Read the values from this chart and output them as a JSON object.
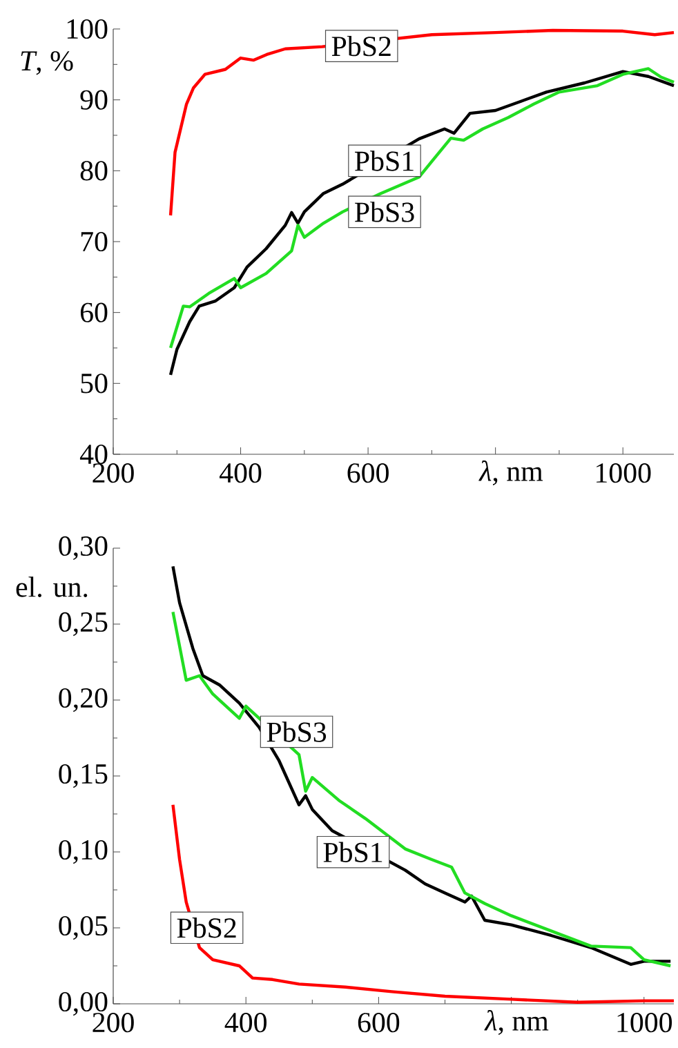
{
  "chart_data": [
    {
      "type": "line",
      "ylabel": "*T*, %",
      "xlabel": "*λ*, nm",
      "xlim": [
        200,
        1080
      ],
      "ylim": [
        40,
        100
      ],
      "xticks": [
        200,
        400,
        600,
        {
          "value": 800,
          "label": null
        },
        1000
      ],
      "yticks": [
        40,
        50,
        60,
        70,
        80,
        90,
        100
      ],
      "series": [
        {
          "name": "PbS1",
          "color": "#000000",
          "x": [
            290,
            300,
            320,
            335,
            360,
            390,
            410,
            440,
            470,
            480,
            490,
            500,
            530,
            560,
            600,
            680,
            720,
            735,
            760,
            800,
            840,
            880,
            940,
            1000,
            1040,
            1080
          ],
          "values": [
            51.2,
            54.8,
            58.7,
            60.9,
            61.6,
            63.5,
            66.4,
            69.0,
            72.3,
            74.1,
            72.6,
            74.2,
            76.8,
            78.1,
            null,
            84.5,
            85.9,
            85.3,
            88.1,
            88.5,
            89.8,
            91.1,
            92.4,
            94.0,
            93.3,
            92.0
          ]
        },
        {
          "name": "PbS2",
          "color": "#ff0000",
          "x": [
            290,
            297,
            315,
            326,
            344,
            376,
            400,
            420,
            441,
            470,
            528,
            600,
            700,
            800,
            890,
            1000,
            1050,
            1080
          ],
          "values": [
            73.7,
            82.6,
            89.4,
            91.7,
            93.6,
            94.3,
            95.9,
            95.6,
            96.4,
            97.2,
            97.5,
            null,
            99.2,
            99.5,
            99.8,
            99.7,
            99.2,
            99.5
          ]
        },
        {
          "name": "PbS3",
          "color": "#22dd22",
          "x": [
            290,
            310,
            320,
            350,
            390,
            400,
            440,
            480,
            490,
            500,
            530,
            560,
            620,
            680,
            700,
            730,
            750,
            780,
            820,
            860,
            900,
            960,
            1000,
            1040,
            1060,
            1080
          ],
          "values": [
            55.0,
            60.9,
            60.8,
            62.7,
            64.8,
            63.5,
            65.5,
            68.7,
            72.3,
            70.6,
            72.6,
            74.2,
            76.8,
            79.1,
            81.3,
            84.6,
            84.3,
            85.9,
            87.5,
            89.4,
            91.1,
            92.0,
            93.6,
            94.4,
            93.2,
            92.5
          ]
        }
      ]
    },
    {
      "type": "line",
      "ylabel": "el. un.",
      "xlabel": "*λ*, nm",
      "xlim": [
        200,
        1045
      ],
      "ylim": [
        0,
        0.3
      ],
      "xticks": [
        200,
        400,
        600,
        {
          "value": 800,
          "label": null
        },
        1000
      ],
      "yticks": [
        {
          "value": 0,
          "label": "0,00"
        },
        {
          "value": 0.05,
          "label": "0,05"
        },
        {
          "value": 0.1,
          "label": "0,10"
        },
        {
          "value": 0.15,
          "label": "0,15"
        },
        {
          "value": 0.2,
          "label": "0,20"
        },
        {
          "value": 0.25,
          "label": "0,25"
        },
        {
          "value": 0.3,
          "label": "0,30"
        }
      ],
      "series": [
        {
          "name": "PbS1",
          "color": "#000000",
          "x": [
            290,
            300,
            320,
            335,
            360,
            390,
            420,
            450,
            480,
            490,
            500,
            530,
            640,
            670,
            700,
            730,
            740,
            760,
            800,
            860,
            920,
            980,
            1000,
            1040
          ],
          "values": [
            0.288,
            0.264,
            0.234,
            0.216,
            0.21,
            0.198,
            0.182,
            0.16,
            0.131,
            0.137,
            0.128,
            0.114,
            0.088,
            0.079,
            0.073,
            0.067,
            0.071,
            0.055,
            0.052,
            0.045,
            0.037,
            0.026,
            0.028,
            0.028
          ]
        },
        {
          "name": "PbS2",
          "color": "#ff0000",
          "x": [
            290,
            300,
            310,
            330,
            350,
            390,
            410,
            440,
            480,
            550,
            620,
            700,
            800,
            900,
            1000,
            1045
          ],
          "values": [
            0.131,
            0.095,
            0.067,
            0.037,
            0.029,
            0.025,
            0.017,
            0.016,
            0.013,
            0.011,
            0.008,
            0.005,
            0.003,
            0.001,
            0.002,
            0.002
          ]
        },
        {
          "name": "PbS3",
          "color": "#22dd22",
          "x": [
            290,
            310,
            330,
            350,
            390,
            400,
            480,
            490,
            500,
            540,
            580,
            640,
            680,
            710,
            730,
            760,
            800,
            860,
            920,
            980,
            1000,
            1040
          ],
          "values": [
            0.258,
            0.213,
            0.216,
            0.204,
            0.188,
            0.196,
            0.164,
            0.14,
            0.149,
            0.134,
            0.122,
            0.102,
            0.095,
            0.09,
            0.073,
            0.066,
            0.058,
            0.048,
            0.038,
            0.037,
            0.029,
            0.025
          ]
        }
      ]
    }
  ]
}
